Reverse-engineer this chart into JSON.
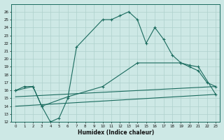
{
  "title": "",
  "xlabel": "Humidex (Indice chaleur)",
  "xlim": [
    -0.5,
    23.5
  ],
  "ylim": [
    12,
    27
  ],
  "yticks": [
    12,
    13,
    14,
    15,
    16,
    17,
    18,
    19,
    20,
    21,
    22,
    23,
    24,
    25,
    26
  ],
  "xticks": [
    0,
    1,
    2,
    3,
    4,
    5,
    6,
    7,
    8,
    9,
    10,
    11,
    12,
    13,
    14,
    15,
    16,
    17,
    18,
    19,
    20,
    21,
    22,
    23
  ],
  "bg_color": "#cde8e5",
  "line_color": "#1a6b5e",
  "grid_color": "#aed0cc",
  "line1_x": [
    0,
    1,
    2,
    3,
    4,
    5,
    6,
    7,
    10,
    11,
    12,
    13,
    14,
    15,
    16,
    17,
    18,
    19,
    20,
    21,
    22,
    23
  ],
  "line1_y": [
    16.0,
    16.5,
    16.5,
    14.0,
    12.0,
    12.5,
    15.0,
    21.5,
    25.0,
    25.0,
    25.5,
    26.0,
    25.0,
    22.0,
    24.0,
    22.5,
    20.5,
    19.5,
    19.0,
    18.5,
    17.0,
    16.5
  ],
  "line2_x": [
    0,
    2,
    3,
    6,
    10,
    14,
    19,
    20,
    21,
    23
  ],
  "line2_y": [
    16.0,
    16.5,
    14.0,
    15.2,
    16.5,
    19.5,
    19.5,
    19.2,
    19.0,
    15.5
  ],
  "line3_x": [
    0,
    23
  ],
  "line3_y": [
    15.2,
    16.5
  ],
  "line4_x": [
    0,
    23
  ],
  "line4_y": [
    14.0,
    15.5
  ]
}
